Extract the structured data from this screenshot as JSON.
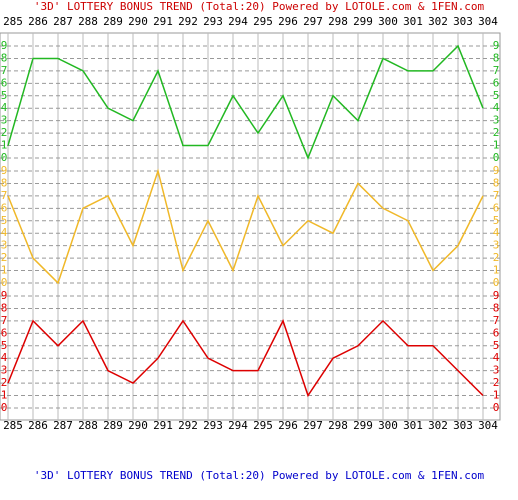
{
  "chart_data": {
    "type": "line",
    "title": "'3D' LOTTERY BONUS TREND (Total:20)  Powered by LOTOLE.com & 1FEN.com",
    "footer": "'3D' LOTTERY BONUS TREND (Total:20)  Powered by LOTOLE.com & 1FEN.com",
    "categories": [
      "285",
      "286",
      "287",
      "288",
      "289",
      "290",
      "291",
      "292",
      "293",
      "294",
      "295",
      "296",
      "297",
      "298",
      "299",
      "300",
      "301",
      "302",
      "303",
      "304"
    ],
    "series": [
      {
        "color": "#22b822",
        "values": [
          1,
          8,
          8,
          7,
          4,
          3,
          7,
          1,
          1,
          5,
          2,
          5,
          0,
          5,
          3,
          8,
          7,
          7,
          9,
          4
        ]
      },
      {
        "color": "#f0b828",
        "values": [
          7,
          2,
          0,
          6,
          7,
          3,
          9,
          1,
          5,
          1,
          7,
          3,
          5,
          4,
          8,
          6,
          5,
          1,
          3,
          7
        ]
      },
      {
        "color": "#dd0000",
        "values": [
          2,
          7,
          5,
          7,
          3,
          2,
          4,
          7,
          4,
          3,
          3,
          7,
          1,
          4,
          5,
          7,
          5,
          5,
          3,
          1
        ]
      }
    ],
    "ylim": [
      0,
      9
    ],
    "yticks": [
      0,
      1,
      2,
      3,
      4,
      5,
      6,
      7,
      8,
      9
    ],
    "grid": true
  }
}
